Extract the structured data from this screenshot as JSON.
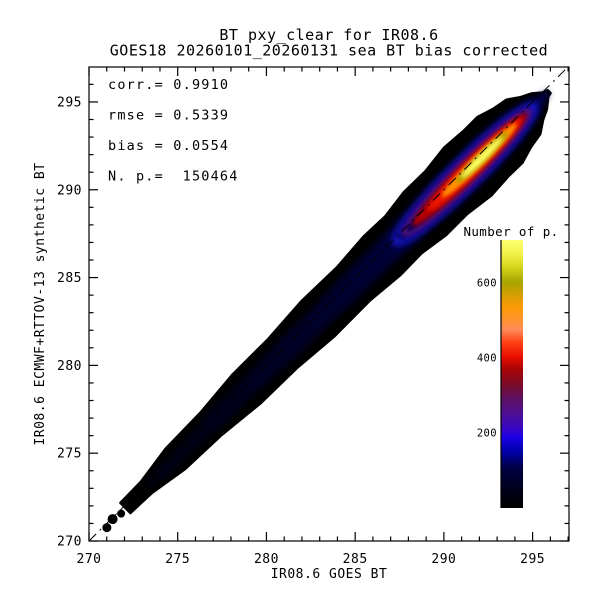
{
  "title": {
    "line1": "BT pxy_clear for IR08.6",
    "line2": "GOES18 20260101_20260131 sea BT bias corrected"
  },
  "stats_panel": {
    "lines": [
      "corr.= 0.9910",
      "rmse = 0.5339",
      "bias = 0.0554",
      "N. p.=  150464"
    ]
  },
  "chart_data": {
    "type": "heatmap",
    "title": "BT pxy_clear for IR08.6",
    "subtitle": "GOES18 20260101_20260131 sea BT bias corrected",
    "xlabel": "IR08.6 GOES BT",
    "ylabel": "IR08.6 ECMWF+RTTOV-13 synthetic BT",
    "xlim": [
      270,
      297.05
    ],
    "ylim": [
      270,
      296.99
    ],
    "xticks": [
      270,
      275,
      280,
      285,
      290,
      295
    ],
    "yticks": [
      270,
      275,
      280,
      285,
      290,
      295
    ],
    "minor_tick_step": 1,
    "grid": false,
    "stats": {
      "corr": 0.991,
      "rmse": 0.5339,
      "bias": 0.0554,
      "n_points": 150464
    },
    "reference_line": {
      "type": "y=x",
      "style": "dash-dot",
      "color": "#000000"
    },
    "colorbar": {
      "title": "Number of p.",
      "ticks": [
        200,
        400,
        600
      ],
      "range": [
        0,
        715
      ],
      "position": "right-inset",
      "gradient": [
        [
          0.0,
          "#000000"
        ],
        [
          0.07,
          "#00001a"
        ],
        [
          0.15,
          "#000045"
        ],
        [
          0.21,
          "#0000a8"
        ],
        [
          0.265,
          "#1c00e8"
        ],
        [
          0.3,
          "#3a08c0"
        ],
        [
          0.35,
          "#4d0f96"
        ],
        [
          0.41,
          "#5e1060"
        ],
        [
          0.46,
          "#7a0c28"
        ],
        [
          0.52,
          "#aa0505"
        ],
        [
          0.563,
          "#e80d00"
        ],
        [
          0.62,
          "#ff4414"
        ],
        [
          0.665,
          "#ff8a5a"
        ],
        [
          0.7,
          "#ff9430"
        ],
        [
          0.75,
          "#fc9a07"
        ],
        [
          0.8,
          "#cfa000"
        ],
        [
          0.843,
          "#a8a400"
        ],
        [
          0.9,
          "#d6d61c"
        ],
        [
          0.955,
          "#f4f44e"
        ],
        [
          1.0,
          "#ffff72"
        ]
      ]
    },
    "density": {
      "description": "2-D histogram of 150464 points concentrated in a narrow band along the 1:1 diagonal from about (271,271) K to (295.9,295.6) K; band half-width grows from ~0.3 K at 271 K to ~1.8 K near 292 K; density peak ~700 counts near (292,292).",
      "diagonal_extent": [
        [
          270.9,
          270.7
        ],
        [
          295.9,
          295.6
        ]
      ],
      "peak": {
        "x": 292.0,
        "y": 291.9,
        "count": 700
      },
      "layers": [
        {
          "name": "outer",
          "count_level": 1,
          "color": "#000000"
        },
        {
          "name": "navy",
          "count_level": 80,
          "color": "#000046"
        },
        {
          "name": "blue-ridge",
          "count_level": 170,
          "color": "#1a1aee"
        },
        {
          "name": "purple",
          "count_level": 250,
          "color": "#55087d"
        },
        {
          "name": "dark-red",
          "count_level": 320,
          "color": "#b40000"
        },
        {
          "name": "red",
          "count_level": 430,
          "color": "#ee1400"
        },
        {
          "name": "orange",
          "count_level": 520,
          "color": "#ff9100"
        },
        {
          "name": "olive",
          "count_level": 610,
          "color": "#a8a400"
        },
        {
          "name": "yellow-peak",
          "count_level": 700,
          "color": "#ffff63"
        }
      ]
    }
  },
  "colors": {
    "text": "#000000",
    "frame": "#000000",
    "background": "#ffffff"
  }
}
